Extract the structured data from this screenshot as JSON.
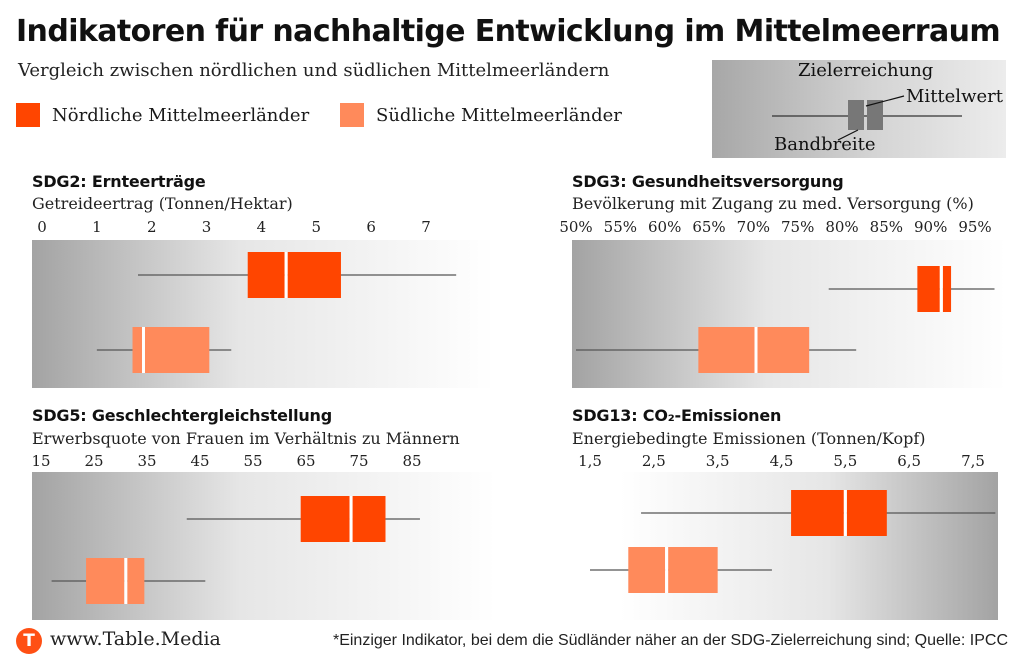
{
  "title": "Indikatoren für nachhaltige Entwicklung im Mittelmeerraum",
  "subtitle": "Vergleich zwischen nördlichen und südlichen Mittelmeerländern",
  "colors": {
    "north": "#ff4500",
    "south": "#ff8a5b",
    "whisker": "#555555",
    "key_box": "#7a7a7a"
  },
  "legend": {
    "north": "Nördliche Mittelmeerländer",
    "south": "Südliche Mittelmeerländer"
  },
  "key": {
    "goal": "Zielerreichung",
    "mean": "Mittelwert",
    "range": "Bandbreite"
  },
  "footer": {
    "logo": "T",
    "site": "www.Table.Media",
    "note": "*Einziger Indikator, bei dem die Südländer näher an der SDG-Zielerreichung sind; Quelle: IPCC"
  },
  "chart_data": [
    {
      "type": "boxplot",
      "title": "SDG2: Ernteerträge",
      "ylabel": "Getreideertrag (Tonnen/Hektar)",
      "ticks": [
        0,
        1,
        2,
        3,
        4,
        5,
        6,
        7
      ],
      "tick_labels": [
        "0",
        "1",
        "2",
        "3",
        "4",
        "5",
        "6",
        "7"
      ],
      "goal_direction": "right",
      "series": [
        {
          "name": "Nördliche Mittelmeerländer",
          "min": 1.75,
          "q1": 3.75,
          "mean": 4.45,
          "q3": 5.45,
          "max": 7.55
        },
        {
          "name": "Südliche Mittelmeerländer",
          "min": 1.0,
          "q1": 1.65,
          "mean": 1.85,
          "q3": 3.05,
          "max": 3.45
        }
      ]
    },
    {
      "type": "boxplot",
      "title": "SDG3: Gesundheitsversorgung",
      "ylabel": "Bevölkerung mit Zugang zu med. Versorgung (%)",
      "ticks": [
        50,
        55,
        60,
        65,
        70,
        75,
        80,
        85,
        90,
        95
      ],
      "tick_labels": [
        "50%",
        "55%",
        "60%",
        "65%",
        "70%",
        "75%",
        "80%",
        "85%",
        "90%",
        "95%"
      ],
      "goal_direction": "right",
      "series": [
        {
          "name": "Nördliche Mittelmeerländer",
          "min": 78.5,
          "q1": 88.5,
          "mean": 91.2,
          "q3": 92.3,
          "max": 97.2
        },
        {
          "name": "Südliche Mittelmeerländer",
          "min": 50.0,
          "q1": 63.8,
          "mean": 70.3,
          "q3": 76.3,
          "max": 81.6
        }
      ]
    },
    {
      "type": "boxplot",
      "title": "SDG5: Geschlechtergleichstellung",
      "ylabel": "Erwerbsquote von Frauen im Verhältnis zu Männern",
      "ticks": [
        15,
        25,
        35,
        45,
        55,
        65,
        75,
        85
      ],
      "tick_labels": [
        "15",
        "25",
        "35",
        "45",
        "55",
        "65",
        "75",
        "85"
      ],
      "goal_direction": "right",
      "series": [
        {
          "name": "Nördliche Mittelmeerländer",
          "min": 42.5,
          "q1": 64.0,
          "mean": 73.5,
          "q3": 80.0,
          "max": 86.5
        },
        {
          "name": "Südliche Mittelmeerländer",
          "min": 17.0,
          "q1": 23.5,
          "mean": 31.0,
          "q3": 34.5,
          "max": 46.0
        }
      ]
    },
    {
      "type": "boxplot",
      "title": "SDG13: CO₂-Emissionen",
      "ylabel": "Energiebedingte Emissionen (Tonnen/Kopf)",
      "ticks": [
        1.5,
        2.5,
        3.5,
        4.5,
        5.5,
        6.5,
        7.5
      ],
      "tick_labels": [
        "1,5",
        "2,5",
        "3,5",
        "4,5",
        "5,5",
        "6,5",
        "7,5"
      ],
      "goal_direction": "left",
      "series": [
        {
          "name": "Nördliche Mittelmeerländer",
          "min": 2.3,
          "q1": 4.65,
          "mean": 5.5,
          "q3": 6.15,
          "max": 7.85
        },
        {
          "name": "Südliche Mittelmeerländer",
          "min": 1.5,
          "q1": 2.1,
          "mean": 2.7,
          "q3": 3.5,
          "max": 4.35
        }
      ]
    }
  ]
}
